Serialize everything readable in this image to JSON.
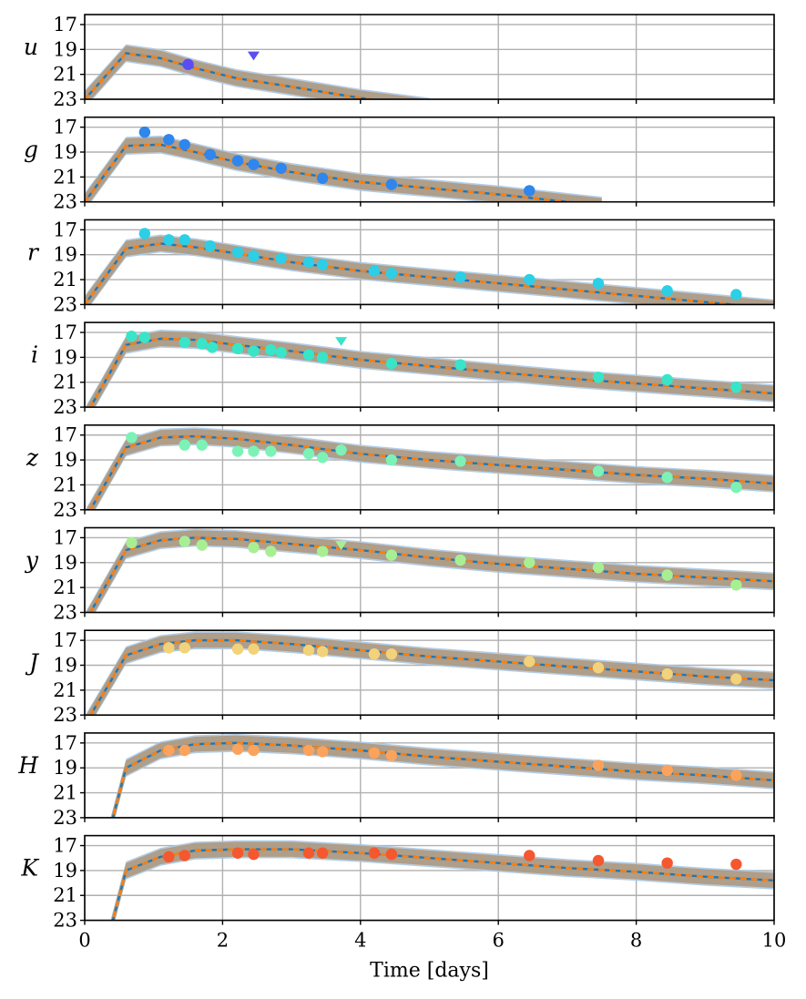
{
  "chart_data": {
    "type": "scatter",
    "layout": "9 vertically stacked panels sharing the x axis",
    "xlabel": "Time [days]",
    "xlim": [
      0,
      10
    ],
    "xticks": [
      0,
      2,
      4,
      6,
      8,
      10
    ],
    "ylim": [
      23,
      16.2
    ],
    "yaxis_inverted": true,
    "yticks": [
      17,
      19,
      21,
      23
    ],
    "grid": true,
    "model_lines": [
      {
        "style": "dashed",
        "color": "#1f77b4",
        "band_color": "#a6c8e8"
      },
      {
        "style": "dashed",
        "color": "#ff7f0e",
        "band_color": "#fcc999"
      }
    ],
    "panels": [
      {
        "band": "u",
        "color": "#5b4df2",
        "model_x": [
          0,
          0.6,
          1.1,
          1.6,
          2.2,
          3,
          4,
          5
        ],
        "model_y": [
          23.0,
          19.3,
          19.7,
          20.5,
          21.3,
          22.0,
          22.9,
          23.6
        ],
        "points": [
          {
            "x": 1.5,
            "y": 20.2
          }
        ],
        "limits": [
          {
            "x": 2.45,
            "y": 19.5
          }
        ]
      },
      {
        "band": "g",
        "color": "#2f86ec",
        "model_x": [
          0,
          0.6,
          1.1,
          1.6,
          2.2,
          3,
          4,
          5,
          6,
          7,
          7.5
        ],
        "model_y": [
          23.0,
          18.5,
          18.4,
          19.0,
          19.8,
          20.6,
          21.4,
          21.9,
          22.4,
          23.0,
          23.3
        ],
        "points": [
          {
            "x": 0.87,
            "y": 17.4
          },
          {
            "x": 1.22,
            "y": 18.0
          },
          {
            "x": 1.45,
            "y": 18.4
          },
          {
            "x": 1.82,
            "y": 19.2
          },
          {
            "x": 2.22,
            "y": 19.7
          },
          {
            "x": 2.45,
            "y": 20.0
          },
          {
            "x": 2.85,
            "y": 20.3
          },
          {
            "x": 3.45,
            "y": 21.1
          },
          {
            "x": 4.45,
            "y": 21.6
          },
          {
            "x": 6.45,
            "y": 22.1
          }
        ],
        "limits": []
      },
      {
        "band": "r",
        "color": "#2ccfe6",
        "model_x": [
          0,
          0.6,
          1.1,
          1.6,
          2.2,
          3,
          4,
          5,
          6,
          7,
          8,
          9,
          10
        ],
        "model_y": [
          23.0,
          18.5,
          18.1,
          18.4,
          18.9,
          19.6,
          20.3,
          20.8,
          21.3,
          21.8,
          22.3,
          22.8,
          23.3
        ],
        "points": [
          {
            "x": 0.87,
            "y": 17.3
          },
          {
            "x": 1.22,
            "y": 17.8
          },
          {
            "x": 1.45,
            "y": 17.8
          },
          {
            "x": 1.82,
            "y": 18.3
          },
          {
            "x": 2.22,
            "y": 18.8
          },
          {
            "x": 2.45,
            "y": 19.1
          },
          {
            "x": 2.85,
            "y": 19.3
          },
          {
            "x": 3.25,
            "y": 19.6
          },
          {
            "x": 3.45,
            "y": 19.8
          },
          {
            "x": 4.2,
            "y": 20.3
          },
          {
            "x": 4.45,
            "y": 20.5
          },
          {
            "x": 5.45,
            "y": 20.8
          },
          {
            "x": 6.45,
            "y": 21.0
          },
          {
            "x": 7.45,
            "y": 21.3
          },
          {
            "x": 8.45,
            "y": 21.9
          },
          {
            "x": 9.45,
            "y": 22.2
          }
        ],
        "limits": []
      },
      {
        "band": "i",
        "color": "#38e5c8",
        "model_x": [
          0,
          0.6,
          1.1,
          1.6,
          2.2,
          3,
          4,
          5,
          6,
          7,
          8,
          9,
          10
        ],
        "model_y": [
          23.8,
          18.0,
          17.5,
          17.6,
          18.0,
          18.5,
          19.2,
          19.7,
          20.2,
          20.7,
          21.1,
          21.5,
          21.9
        ],
        "points": [
          {
            "x": 0.68,
            "y": 17.3
          },
          {
            "x": 0.87,
            "y": 17.4
          },
          {
            "x": 1.45,
            "y": 17.8
          },
          {
            "x": 1.7,
            "y": 17.9
          },
          {
            "x": 1.85,
            "y": 18.2
          },
          {
            "x": 2.22,
            "y": 18.3
          },
          {
            "x": 2.45,
            "y": 18.5
          },
          {
            "x": 2.7,
            "y": 18.4
          },
          {
            "x": 2.85,
            "y": 18.6
          },
          {
            "x": 3.25,
            "y": 18.8
          },
          {
            "x": 3.45,
            "y": 19.0
          },
          {
            "x": 4.45,
            "y": 19.5
          },
          {
            "x": 5.45,
            "y": 19.6
          },
          {
            "x": 7.45,
            "y": 20.6
          },
          {
            "x": 8.45,
            "y": 20.8
          },
          {
            "x": 9.45,
            "y": 21.4
          }
        ],
        "limits": [
          {
            "x": 3.72,
            "y": 17.7
          }
        ]
      },
      {
        "band": "z",
        "color": "#7df2b6",
        "model_x": [
          0,
          0.6,
          1.1,
          1.6,
          2.2,
          3,
          4,
          5,
          6,
          7,
          8,
          9,
          10
        ],
        "model_y": [
          23.8,
          18.0,
          17.2,
          17.1,
          17.3,
          17.8,
          18.5,
          19.0,
          19.4,
          19.8,
          20.2,
          20.5,
          20.9
        ],
        "points": [
          {
            "x": 0.68,
            "y": 17.2
          },
          {
            "x": 1.45,
            "y": 17.8
          },
          {
            "x": 1.7,
            "y": 17.8
          },
          {
            "x": 2.22,
            "y": 18.3
          },
          {
            "x": 2.45,
            "y": 18.3
          },
          {
            "x": 2.7,
            "y": 18.3
          },
          {
            "x": 3.25,
            "y": 18.5
          },
          {
            "x": 3.45,
            "y": 18.8
          },
          {
            "x": 3.72,
            "y": 18.2
          },
          {
            "x": 4.45,
            "y": 19.0
          },
          {
            "x": 5.45,
            "y": 19.1
          },
          {
            "x": 7.45,
            "y": 19.9
          },
          {
            "x": 8.45,
            "y": 20.4
          },
          {
            "x": 9.45,
            "y": 21.2
          }
        ],
        "limits": []
      },
      {
        "band": "y",
        "color": "#a8ef94",
        "model_x": [
          0,
          0.6,
          1.1,
          1.6,
          2.2,
          3,
          4,
          5,
          6,
          7,
          8,
          9,
          10
        ],
        "model_y": [
          23.8,
          18.0,
          17.2,
          17.0,
          17.1,
          17.5,
          18.0,
          18.6,
          19.1,
          19.5,
          19.9,
          20.2,
          20.5
        ],
        "points": [
          {
            "x": 0.68,
            "y": 17.4
          },
          {
            "x": 1.45,
            "y": 17.3
          },
          {
            "x": 1.7,
            "y": 17.6
          },
          {
            "x": 2.45,
            "y": 17.8
          },
          {
            "x": 2.7,
            "y": 18.1
          },
          {
            "x": 3.45,
            "y": 18.1
          },
          {
            "x": 4.45,
            "y": 18.4
          },
          {
            "x": 5.45,
            "y": 18.8
          },
          {
            "x": 6.45,
            "y": 19.0
          },
          {
            "x": 7.45,
            "y": 19.4
          },
          {
            "x": 8.45,
            "y": 20.0
          },
          {
            "x": 9.45,
            "y": 20.8
          }
        ],
        "limits": [
          {
            "x": 3.72,
            "y": 17.6
          }
        ]
      },
      {
        "band": "J",
        "color": "#f2d27a",
        "model_x": [
          0,
          0.6,
          1.1,
          1.6,
          2.2,
          3,
          4,
          5,
          6,
          7,
          8,
          9,
          10
        ],
        "model_y": [
          23.8,
          18.2,
          17.3,
          17.0,
          17.0,
          17.3,
          17.8,
          18.3,
          18.7,
          19.1,
          19.5,
          19.9,
          20.2
        ],
        "points": [
          {
            "x": 1.22,
            "y": 17.6
          },
          {
            "x": 1.45,
            "y": 17.6
          },
          {
            "x": 2.22,
            "y": 17.7
          },
          {
            "x": 2.45,
            "y": 17.7
          },
          {
            "x": 3.25,
            "y": 17.8
          },
          {
            "x": 3.45,
            "y": 17.9
          },
          {
            "x": 4.2,
            "y": 18.1
          },
          {
            "x": 4.45,
            "y": 18.1
          },
          {
            "x": 6.45,
            "y": 18.7
          },
          {
            "x": 7.45,
            "y": 19.2
          },
          {
            "x": 8.45,
            "y": 19.7
          },
          {
            "x": 9.45,
            "y": 20.1
          }
        ],
        "limits": []
      },
      {
        "band": "H",
        "color": "#fba35c",
        "model_x": [
          0.38,
          0.6,
          1.1,
          1.6,
          2.2,
          3,
          4,
          5,
          6,
          7,
          8,
          9,
          10
        ],
        "model_y": [
          23.6,
          19.0,
          17.6,
          17.1,
          17.0,
          17.2,
          17.6,
          18.1,
          18.5,
          18.9,
          19.3,
          19.6,
          20.0
        ],
        "points": [
          {
            "x": 1.22,
            "y": 17.6
          },
          {
            "x": 1.45,
            "y": 17.6
          },
          {
            "x": 2.22,
            "y": 17.5
          },
          {
            "x": 2.45,
            "y": 17.6
          },
          {
            "x": 3.25,
            "y": 17.6
          },
          {
            "x": 3.45,
            "y": 17.7
          },
          {
            "x": 4.2,
            "y": 17.8
          },
          {
            "x": 4.45,
            "y": 18.0
          },
          {
            "x": 7.45,
            "y": 18.8
          },
          {
            "x": 8.45,
            "y": 19.2
          },
          {
            "x": 9.45,
            "y": 19.6
          }
        ],
        "limits": []
      },
      {
        "band": "K",
        "color": "#f5572f",
        "model_x": [
          0.38,
          0.6,
          1.1,
          1.6,
          2.2,
          3,
          4,
          5,
          6,
          7,
          8,
          9,
          10
        ],
        "model_y": [
          23.6,
          19.0,
          17.9,
          17.4,
          17.3,
          17.3,
          17.6,
          18.0,
          18.4,
          18.8,
          19.1,
          19.5,
          19.8
        ],
        "points": [
          {
            "x": 1.22,
            "y": 17.9
          },
          {
            "x": 1.45,
            "y": 17.8
          },
          {
            "x": 2.22,
            "y": 17.6
          },
          {
            "x": 2.45,
            "y": 17.7
          },
          {
            "x": 3.25,
            "y": 17.6
          },
          {
            "x": 3.45,
            "y": 17.6
          },
          {
            "x": 4.2,
            "y": 17.6
          },
          {
            "x": 4.45,
            "y": 17.7
          },
          {
            "x": 6.45,
            "y": 17.8
          },
          {
            "x": 7.45,
            "y": 18.2
          },
          {
            "x": 8.45,
            "y": 18.4
          },
          {
            "x": 9.45,
            "y": 18.5
          }
        ],
        "limits": []
      }
    ]
  }
}
